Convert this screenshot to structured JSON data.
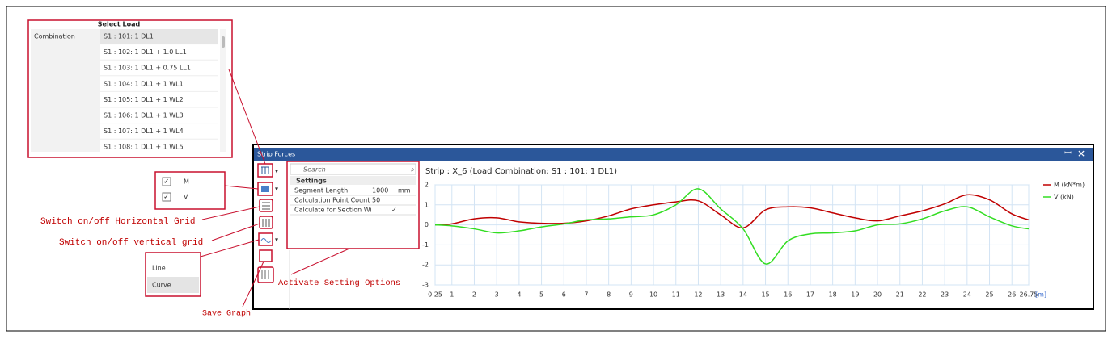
{
  "select_load": {
    "title": "Select Load",
    "column_label": "Combination",
    "items": [
      "S1 : 101: 1 DL1",
      "S1 : 102: 1 DL1 + 1.0 LL1",
      "S1 : 103: 1 DL1 + 0.75 LL1",
      "S1 : 104: 1 DL1 + 1 WL1",
      "S1 : 105: 1 DL1 + 1 WL2",
      "S1 : 106: 1 DL1 + 1 WL3",
      "S1 : 107: 1 DL1 + 1 WL4",
      "S1 : 108: 1 DL1 + 1 WL5"
    ]
  },
  "visibility": {
    "items": [
      "M",
      "V"
    ]
  },
  "curve_menu": {
    "items": [
      "Line",
      "Curve"
    ]
  },
  "annotations": {
    "horizontal_grid": "Switch on/off Horizontal Grid",
    "vertical_grid": "Switch on/off vertical grid",
    "save_graph": "Save Graph",
    "settings": "Activate Setting Options"
  },
  "window": {
    "title": "Strip Forces",
    "search_placeholder": "Search",
    "settings": {
      "header": "Settings",
      "rows": [
        [
          "Segment Length",
          "1000",
          "mm"
        ],
        [
          "Calculation Point Count",
          "50"
        ],
        [
          "Calculate for Section Wi",
          "✓"
        ]
      ]
    }
  },
  "chart_data": {
    "type": "line",
    "title": "Strip : X_6 (Load Combination: S1 : 101: 1 DL1)",
    "x_label": "[m]",
    "x": [
      0.25,
      1,
      2,
      3,
      4,
      5,
      6,
      7,
      8,
      9,
      10,
      11,
      12,
      13,
      14,
      15,
      16,
      17,
      18,
      19,
      20,
      21,
      22,
      23,
      24,
      25,
      26,
      26.75
    ],
    "series": [
      {
        "name": "M (kN*m)",
        "color": "#c00000",
        "values": [
          0,
          0.05,
          0.3,
          0.35,
          0.15,
          0.08,
          0.08,
          0.2,
          0.45,
          0.8,
          1.0,
          1.15,
          1.2,
          0.5,
          -0.15,
          0.75,
          0.9,
          0.85,
          0.6,
          0.35,
          0.2,
          0.45,
          0.7,
          1.05,
          1.5,
          1.25,
          0.55,
          0.25
        ]
      },
      {
        "name": "V (kN)",
        "color": "#33dd22",
        "values": [
          0,
          -0.05,
          -0.2,
          -0.4,
          -0.3,
          -0.1,
          0.05,
          0.25,
          0.3,
          0.4,
          0.5,
          1.0,
          1.8,
          0.8,
          -0.2,
          -1.95,
          -0.8,
          -0.45,
          -0.4,
          -0.3,
          0,
          0.05,
          0.3,
          0.7,
          0.9,
          0.4,
          -0.05,
          -0.2
        ]
      }
    ],
    "xlim": [
      0.25,
      26.75
    ],
    "xticks": [
      0.25,
      1,
      2,
      3,
      4,
      5,
      6,
      7,
      8,
      9,
      10,
      11,
      12,
      13,
      14,
      15,
      16,
      17,
      18,
      19,
      20,
      21,
      22,
      23,
      24,
      25,
      26,
      26.75
    ],
    "ylim": [
      -3,
      2
    ],
    "yticks": [
      -3,
      -2,
      -1,
      0,
      1,
      2
    ],
    "grid": true,
    "legend": "right"
  }
}
